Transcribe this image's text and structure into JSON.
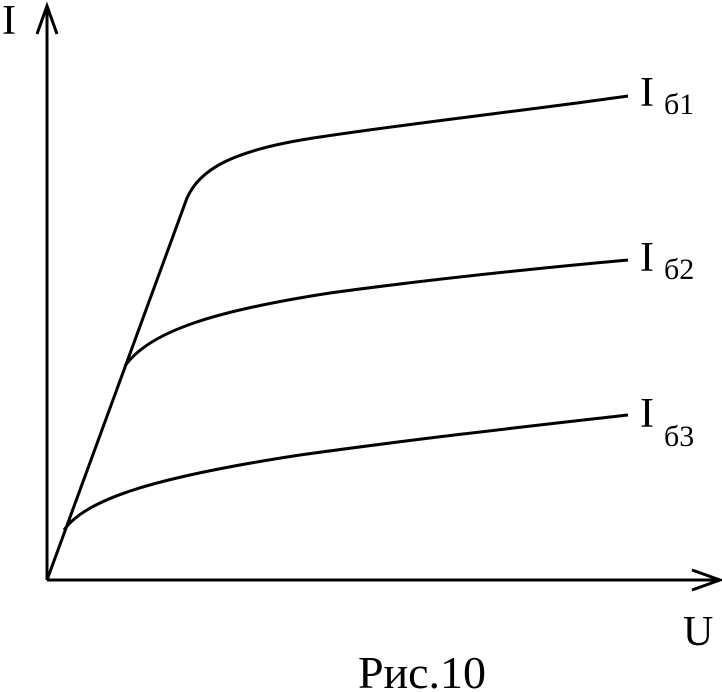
{
  "axes": {
    "y_label": "I",
    "x_label": "U"
  },
  "curves": [
    {
      "label": {
        "main": "I",
        "sub": "б1"
      }
    },
    {
      "label": {
        "main": "I",
        "sub": "б2"
      }
    },
    {
      "label": {
        "main": "I",
        "sub": "б3"
      }
    }
  ],
  "caption": "Рис.10"
}
